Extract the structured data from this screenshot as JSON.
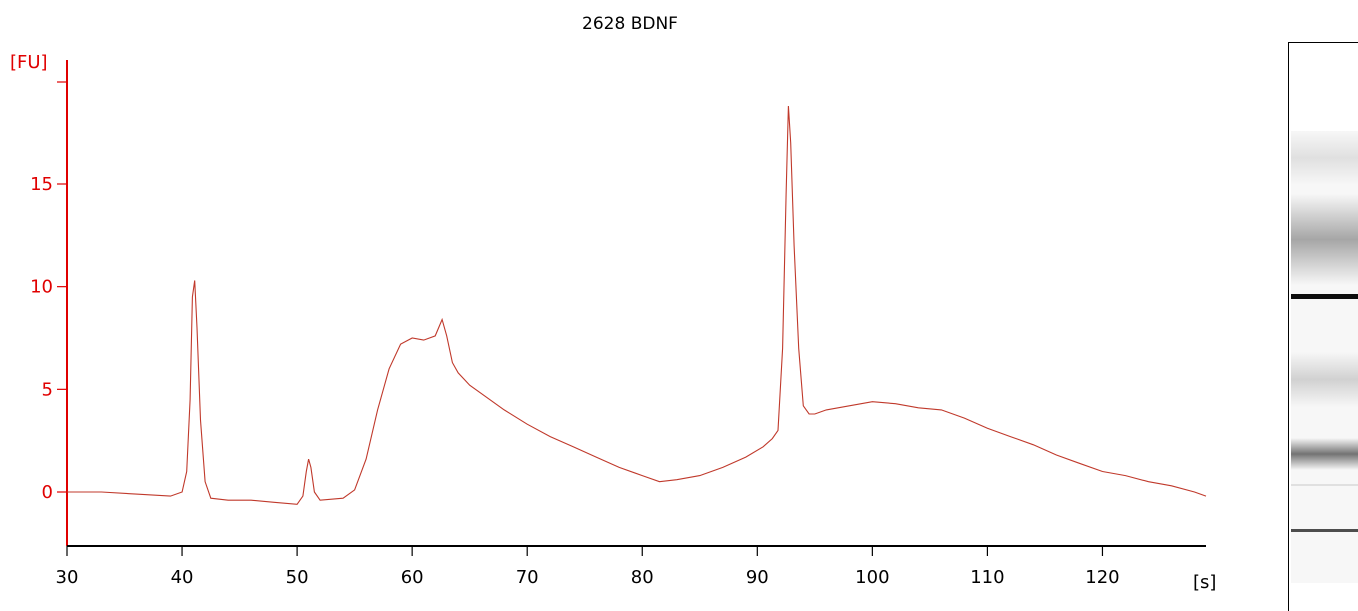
{
  "chart_data": {
    "type": "line",
    "title": "2628 BDNF",
    "xlabel": "[s]",
    "ylabel": "[FU]",
    "xlim": [
      30,
      129
    ],
    "ylim": [
      -2.6,
      21.5
    ],
    "xticks": [
      30,
      40,
      50,
      60,
      70,
      80,
      90,
      100,
      110,
      120
    ],
    "yticks": [
      0,
      5,
      10,
      15
    ],
    "line_color": "#c0392b",
    "axis_color": "#e00000",
    "grid": false,
    "series": [
      {
        "x": [
          30,
          33,
          36,
          39,
          40,
          40.4,
          40.7,
          40.9,
          41.1,
          41.3,
          41.6,
          42,
          42.5,
          44,
          46,
          48,
          50,
          50.5,
          50.8,
          51.0,
          51.2,
          51.5,
          52,
          54,
          55,
          56,
          57,
          58,
          59,
          60,
          61,
          62,
          62.6,
          63,
          63.5,
          64,
          65,
          66,
          68,
          70,
          72,
          74,
          76,
          78,
          80,
          81.5,
          83,
          85,
          87,
          89,
          90.5,
          91.3,
          91.8,
          92.2,
          92.5,
          92.7,
          92.9,
          93.2,
          93.6,
          94,
          94.5,
          95,
          96,
          98,
          100,
          102,
          104,
          106,
          108,
          110,
          112,
          114,
          116,
          118,
          120,
          122,
          124,
          126,
          128,
          129
        ],
        "y": [
          0.0,
          0.0,
          -0.1,
          -0.2,
          0.0,
          1.0,
          4.5,
          9.5,
          10.3,
          8.0,
          3.5,
          0.5,
          -0.3,
          -0.4,
          -0.4,
          -0.5,
          -0.6,
          -0.2,
          1.0,
          1.6,
          1.2,
          0.0,
          -0.4,
          -0.3,
          0.1,
          1.6,
          4.0,
          6.0,
          7.2,
          7.5,
          7.4,
          7.6,
          8.4,
          7.6,
          6.3,
          5.8,
          5.2,
          4.8,
          4.0,
          3.3,
          2.7,
          2.2,
          1.7,
          1.2,
          0.8,
          0.5,
          0.6,
          0.8,
          1.2,
          1.7,
          2.2,
          2.6,
          3.0,
          7.0,
          14.5,
          18.8,
          17.0,
          12.0,
          7.0,
          4.2,
          3.8,
          3.8,
          4.0,
          4.2,
          4.4,
          4.3,
          4.1,
          4.0,
          3.6,
          3.1,
          2.7,
          2.3,
          1.8,
          1.4,
          1.0,
          0.8,
          0.5,
          0.3,
          0.0,
          -0.2
        ]
      }
    ]
  },
  "gel": {
    "bands": [
      {
        "pos": 0.0,
        "width": 0.12,
        "shade": 0.12,
        "style": "soft"
      },
      {
        "pos": 0.14,
        "width": 0.2,
        "shade": 0.35,
        "style": "soft"
      },
      {
        "pos": 0.36,
        "width": 0.012,
        "shade": 0.95,
        "style": "sharp"
      },
      {
        "pos": 0.49,
        "width": 0.12,
        "shade": 0.18,
        "style": "soft"
      },
      {
        "pos": 0.68,
        "width": 0.07,
        "shade": 0.55,
        "style": "soft"
      },
      {
        "pos": 0.78,
        "width": 0.006,
        "shade": 0.12,
        "style": "sharp"
      },
      {
        "pos": 0.88,
        "width": 0.008,
        "shade": 0.7,
        "style": "sharp"
      }
    ],
    "background_shade": 0.03
  }
}
